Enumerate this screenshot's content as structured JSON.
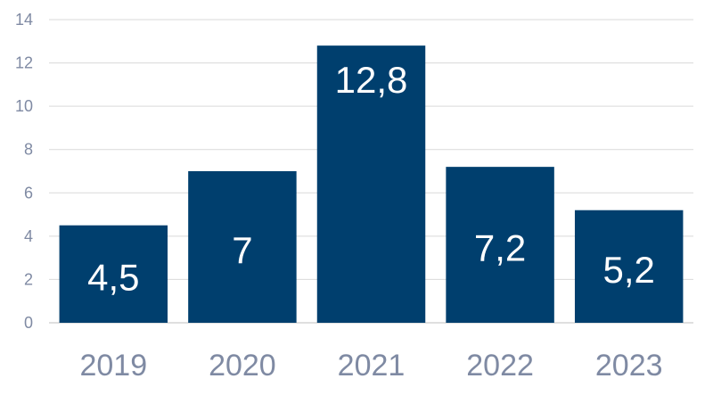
{
  "chart_data": {
    "type": "bar",
    "categories": [
      "2019",
      "2020",
      "2021",
      "2022",
      "2023"
    ],
    "values": [
      4.5,
      7,
      12.8,
      7.2,
      5.2
    ],
    "data_labels": [
      "4,5",
      "7",
      "12,8",
      "7,2",
      "5,2"
    ],
    "y_ticks": [
      {
        "value": 0,
        "label": "0"
      },
      {
        "value": 2,
        "label": "2"
      },
      {
        "value": 4,
        "label": "4"
      },
      {
        "value": 6,
        "label": "6"
      },
      {
        "value": 8,
        "label": "8"
      },
      {
        "value": 10,
        "label": "10"
      },
      {
        "value": 12,
        "label": "12"
      },
      {
        "value": 14,
        "label": "14"
      }
    ],
    "ylim": [
      0,
      14
    ],
    "title": "",
    "xlabel": "",
    "ylabel": "",
    "grid": true,
    "legend": "none",
    "colors": {
      "bar": "#003f6e",
      "grid": "#d9d9d9",
      "tick_text": "#7f8aa3",
      "label_text": "#ffffff"
    }
  }
}
